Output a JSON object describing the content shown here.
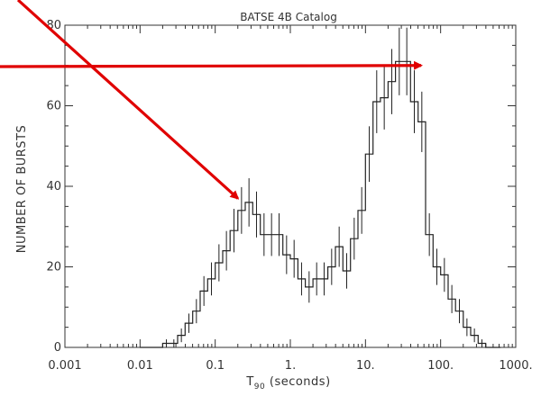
{
  "chart_data": {
    "type": "histogram",
    "title": "BATSE 4B Catalog",
    "xlabel": "T90 (seconds)",
    "xlabel_main": "T",
    "xlabel_sub": "90",
    "xlabel_rest": " (seconds)",
    "ylabel": "NUMBER OF BURSTS",
    "x_scale": "log",
    "xlim": [
      0.001,
      1000
    ],
    "ylim": [
      0,
      80
    ],
    "x_tick_labels": [
      {
        "value": 0.001,
        "label": "0.001"
      },
      {
        "value": 0.01,
        "label": "0.01"
      },
      {
        "value": 0.1,
        "label": "0.1"
      },
      {
        "value": 1,
        "label": "1."
      },
      {
        "value": 10,
        "label": "10."
      },
      {
        "value": 100,
        "label": "100."
      },
      {
        "value": 1000,
        "label": "1000."
      }
    ],
    "y_tick_labels": [
      {
        "value": 0,
        "label": "0"
      },
      {
        "value": 20,
        "label": "20"
      },
      {
        "value": 40,
        "label": "40"
      },
      {
        "value": 60,
        "label": "60"
      },
      {
        "value": 80,
        "label": "80"
      }
    ],
    "bin_edges": [
      0.00993,
      0.0126,
      0.0158,
      0.02,
      0.0251,
      0.0316,
      0.0398,
      0.0501,
      0.0631,
      0.0794,
      0.1,
      0.126,
      0.158,
      0.2,
      0.251,
      0.316,
      0.398,
      0.501,
      0.631,
      0.794,
      1.0,
      1.26,
      1.58,
      2.0,
      2.51,
      3.16,
      3.98,
      5.01,
      6.31,
      7.94,
      10.0,
      12.6,
      15.8,
      20.0,
      25.1,
      31.6,
      39.8,
      50.1,
      63.1,
      79.4,
      100.0,
      126,
      158,
      200,
      251,
      316,
      398,
      501,
      631
    ],
    "counts": [
      0,
      0,
      0,
      1,
      1,
      3,
      6,
      9,
      14,
      17,
      21,
      24,
      29,
      34,
      36,
      33,
      28,
      28,
      28,
      23,
      22,
      17,
      15,
      17,
      17,
      20,
      25,
      19,
      27,
      34,
      48,
      61,
      62,
      66,
      71,
      71,
      61,
      56,
      28,
      20,
      18,
      12,
      9,
      5,
      3,
      1,
      0,
      0
    ],
    "errors": [
      0,
      0,
      0,
      1,
      1,
      1.7,
      2.4,
      3,
      3.7,
      4.1,
      4.6,
      4.9,
      5.4,
      5.8,
      6,
      5.7,
      5.3,
      5.3,
      5.3,
      4.8,
      4.7,
      4.1,
      3.9,
      4.1,
      4.1,
      4.5,
      5,
      4.4,
      5.2,
      5.8,
      6.9,
      7.8,
      7.9,
      8.1,
      8.4,
      8.4,
      7.8,
      7.5,
      5.3,
      4.5,
      4.2,
      3.5,
      3,
      2.2,
      1.7,
      1,
      0,
      0
    ],
    "annotations": [
      {
        "type": "arrow",
        "color": "#e00000",
        "target": {
          "x": 0.2,
          "y": 37
        }
      },
      {
        "type": "arrow",
        "color": "#e00000",
        "target": {
          "x": 55,
          "y": 70
        }
      }
    ],
    "colors": {
      "histogram": "#222222",
      "axes": "#333333",
      "arrows": "#e00000"
    }
  }
}
